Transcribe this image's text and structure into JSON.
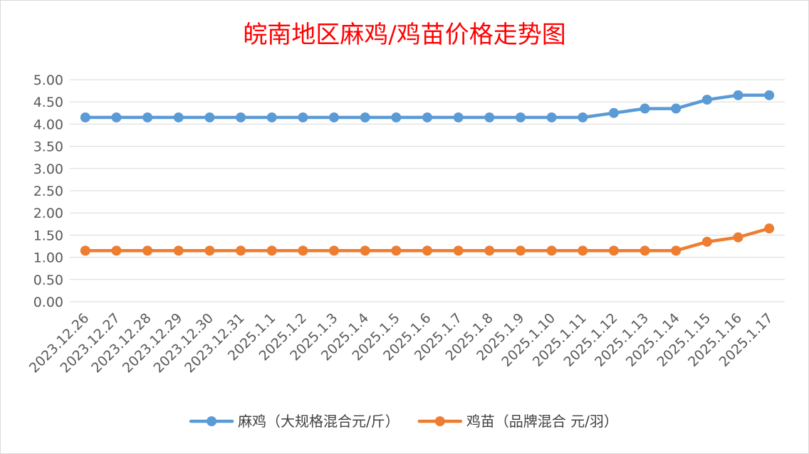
{
  "chart_data": {
    "type": "line",
    "title": "皖南地区麻鸡/鸡苗价格走势图",
    "xlabel": "",
    "ylabel": "",
    "categories": [
      "2023.12.26",
      "2023.12.27",
      "2023.12.28",
      "2023.12.29",
      "2023.12.30",
      "2023.12.31",
      "2025.1.1",
      "2025.1.2",
      "2025.1.3",
      "2025.1.4",
      "2025.1.5",
      "2025.1.6",
      "2025.1.7",
      "2025.1.8",
      "2025.1.9",
      "2025.1.10",
      "2025.1.11",
      "2025.1.12",
      "2025.1.13",
      "2025.1.14",
      "2025.1.15",
      "2025.1.16",
      "2025.1.17"
    ],
    "ylim": [
      0,
      5
    ],
    "yticks": [
      "0.00",
      "0.50",
      "1.00",
      "1.50",
      "2.00",
      "2.50",
      "3.00",
      "3.50",
      "4.00",
      "4.50",
      "5.00"
    ],
    "grid": true,
    "legend_position": "bottom",
    "series": [
      {
        "name": "麻鸡（大规格混合元/斤）",
        "color": "#5b9bd5",
        "values": [
          4.15,
          4.15,
          4.15,
          4.15,
          4.15,
          4.15,
          4.15,
          4.15,
          4.15,
          4.15,
          4.15,
          4.15,
          4.15,
          4.15,
          4.15,
          4.15,
          4.15,
          4.25,
          4.35,
          4.35,
          4.55,
          4.65,
          4.65
        ]
      },
      {
        "name": "鸡苗（品牌混合 元/羽）",
        "color": "#ed7d31",
        "values": [
          1.15,
          1.15,
          1.15,
          1.15,
          1.15,
          1.15,
          1.15,
          1.15,
          1.15,
          1.15,
          1.15,
          1.15,
          1.15,
          1.15,
          1.15,
          1.15,
          1.15,
          1.15,
          1.15,
          1.15,
          1.35,
          1.45,
          1.65
        ]
      }
    ]
  }
}
